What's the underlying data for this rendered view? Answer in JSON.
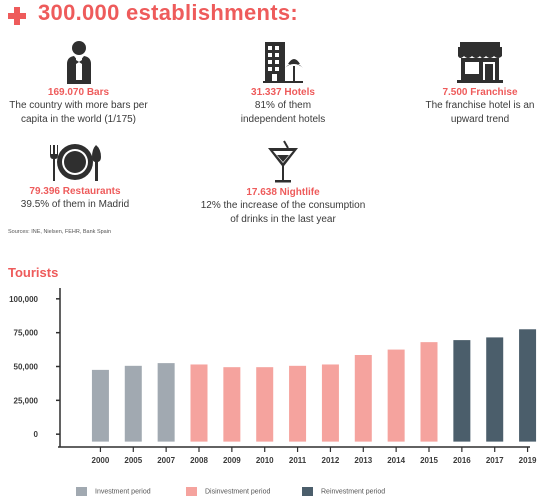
{
  "header": {
    "title": "300.000 establishments:"
  },
  "stats": [
    {
      "icon": "waiter-icon",
      "value": "169.070 Bars",
      "desc1": "The country with more bars per",
      "desc2": "capita in the world (1/175)"
    },
    {
      "icon": "hotel-icon",
      "value": "31.337 Hotels",
      "desc1": "81% of them",
      "desc2": "independent hotels"
    },
    {
      "icon": "storefront-icon",
      "value": "7.500 Franchise",
      "desc1": "The franchise hotel is an",
      "desc2": "upward trend"
    },
    {
      "icon": "plate-cutlery-icon",
      "value": "79.396 Restaurants",
      "desc1": "39.5% of them in Madrid",
      "desc2": ""
    },
    {
      "icon": "cocktail-icon",
      "value": "17.638 Nightlife",
      "desc1": "12% the increase of the consumption",
      "desc2": "of drinks in the last year"
    }
  ],
  "sources": "Sources: INE, Nielsen, FEHR, Bank Spain",
  "chart_title": "Tourists",
  "chart_data": {
    "type": "bar",
    "title": "Tourists",
    "categories": [
      "2000",
      "2005",
      "2007",
      "2008",
      "2009",
      "2010",
      "2011",
      "2012",
      "2013",
      "2014",
      "2015",
      "2016",
      "2017",
      "2019"
    ],
    "values": [
      47500,
      50500,
      52500,
      51500,
      49500,
      49500,
      50500,
      51500,
      58500,
      62500,
      68000,
      69500,
      71500,
      77500
    ],
    "periods": [
      "investment",
      "investment",
      "investment",
      "disinvestment",
      "disinvestment",
      "disinvestment",
      "disinvestment",
      "disinvestment",
      "disinvestment",
      "disinvestment",
      "disinvestment",
      "reinvestment",
      "reinvestment",
      "reinvestment"
    ],
    "yticks": [
      0,
      25000,
      50000,
      75000,
      100000
    ],
    "ytick_labels": [
      "0",
      "25,000",
      "50,000",
      "75,000",
      "100,000"
    ],
    "ylim": [
      -8000,
      108000
    ],
    "grid": false,
    "legend_position": "bottom",
    "colors": {
      "investment": "#a1a9b1",
      "disinvestment": "#f5a39e",
      "reinvestment": "#4b5e6b",
      "accent": "#ee5b5b"
    }
  },
  "legend": [
    {
      "key": "investment",
      "label": "Investment period",
      "color": "#a1a9b1"
    },
    {
      "key": "disinvestment",
      "label": "Disinvestment period",
      "color": "#f5a39e"
    },
    {
      "key": "reinvestment",
      "label": "Reinvestment period",
      "color": "#4b5e6b"
    }
  ]
}
